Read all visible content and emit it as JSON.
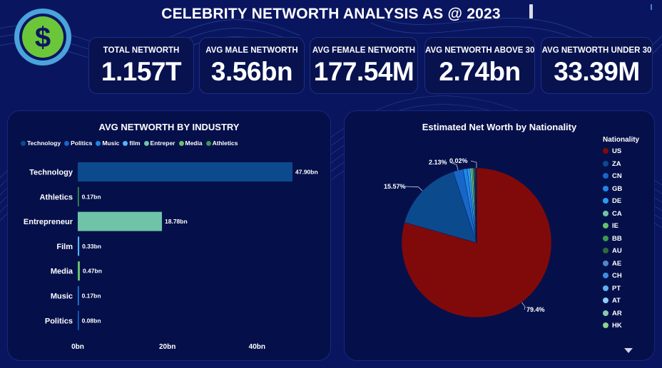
{
  "header": {
    "title": "CELEBRITY NETWORTH ANALYSIS AS @ 2023",
    "logo_icon": "dollar-coin-icon"
  },
  "kpis": [
    {
      "label": "TOTAL NETWORTH",
      "value": "1.157T"
    },
    {
      "label": "AVG MALE NETWORTH",
      "value": "3.56bn"
    },
    {
      "label": "AVG FEMALE NETWORTH",
      "value": "177.54M"
    },
    {
      "label": "AVG NETWORTH ABOVE 30",
      "value": "2.74bn"
    },
    {
      "label": "AVG NETWORTH UNDER 30",
      "value": "33.39M"
    }
  ],
  "chart_data": [
    {
      "type": "bar",
      "orientation": "horizontal",
      "title": "AVG NETWORTH BY INDUSTRY",
      "legend": [
        "Technology",
        "Politics",
        "Music",
        "film",
        "Entreper",
        "Media",
        "Athletics"
      ],
      "legend_colors": [
        "#0c4a8e",
        "#1766c8",
        "#1f87e8",
        "#59b3f7",
        "#6fc4a8",
        "#67c16a",
        "#3b9a4e"
      ],
      "categories": [
        "Technology",
        "Athletics",
        "Entrepreneur",
        "Film",
        "Media",
        "Music",
        "Politics"
      ],
      "values": [
        47.9,
        0.17,
        18.78,
        0.33,
        0.47,
        0.17,
        0.08
      ],
      "data_labels": [
        "47.90bn",
        "0.17bn",
        "18.78bn",
        "0.33bn",
        "0.47bn",
        "0.17bn",
        "0.08bn"
      ],
      "colors": [
        "#0c4a8e",
        "#3b9a4e",
        "#6fc4a8",
        "#59b3f7",
        "#67c16a",
        "#1f87e8",
        "#1766c8"
      ],
      "xticks": [
        0,
        20,
        40
      ],
      "xtick_labels": [
        "0bn",
        "20bn",
        "40bn"
      ],
      "xlim": [
        0,
        50
      ],
      "legend_position": "top-left",
      "grid": false
    },
    {
      "type": "pie",
      "title": "Estimated Net Worth by Nationality",
      "legend_title": "Nationality",
      "legend_position": "right",
      "categories": [
        "US",
        "ZA",
        "CN",
        "GB",
        "DE",
        "CA",
        "IE",
        "BB",
        "AU",
        "AE",
        "CH",
        "PT",
        "AT",
        "AR",
        "HK"
      ],
      "colors": [
        "#800a0a",
        "#0c4a8e",
        "#1766c8",
        "#1f87e8",
        "#2d9cf0",
        "#6fc4a8",
        "#67c16a",
        "#3b9a4e",
        "#2e6b3a",
        "#4f86c6",
        "#3f8de0",
        "#5eb0f2",
        "#8fcdf6",
        "#8ac9b0",
        "#8fd08f"
      ],
      "values": [
        79.4,
        15.57,
        2.13,
        0.9,
        0.6,
        0.4,
        0.3,
        0.2,
        0.15,
        0.1,
        0.08,
        0.06,
        0.05,
        0.04,
        0.02
      ],
      "slice_labels": [
        {
          "category": "US",
          "text": "79.4%"
        },
        {
          "category": "ZA",
          "text": "15.57%"
        },
        {
          "category": "CN",
          "text": "2.13%"
        },
        {
          "category": "HK",
          "text": "0.02%"
        }
      ]
    }
  ]
}
